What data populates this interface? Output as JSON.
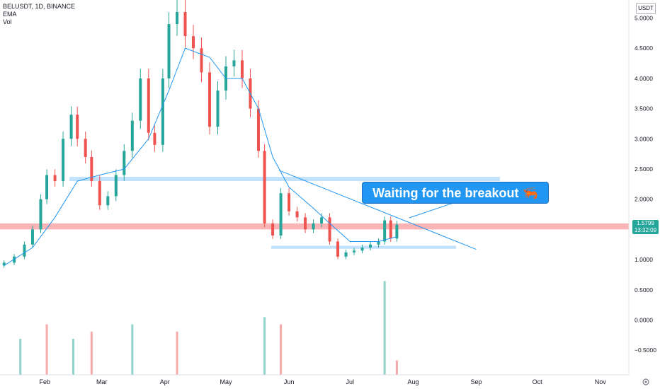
{
  "legend": {
    "symbol": "BELUSDT, 1D, BINANCE",
    "ema": "EMA",
    "vol": "Vol"
  },
  "axis": {
    "unit": "USDT",
    "price_ticks": [
      "5.0000",
      "4.5000",
      "4.0000",
      "3.5000",
      "3.0000",
      "2.5000",
      "2.0000",
      "1.0000",
      "0.5000",
      "0.0000",
      "−0.5000"
    ],
    "month_ticks": [
      "Feb",
      "Mar",
      "Apr",
      "May",
      "Jun",
      "Jul",
      "Aug",
      "Sep",
      "Oct",
      "Nov"
    ]
  },
  "price_tag": {
    "price": "1.5799",
    "countdown": "13:32:09"
  },
  "callout": {
    "text": "Waiting for the breakout 🦐"
  },
  "colors": {
    "up": "#26a69a",
    "down": "#ef5350",
    "ema": "#2196f3",
    "support_zone": "#bbdefb",
    "resistance_zone": "#f8a8a8",
    "callout": "#2196f3"
  },
  "chart_data": {
    "type": "candlestick",
    "timeframe": "1D",
    "ylim": [
      -0.6,
      5.3
    ],
    "x_range": [
      "2021-01-10",
      "2021-11-15"
    ],
    "series": [
      {
        "name": "BELUSDT",
        "kind": "candles",
        "points": [
          {
            "date": "2021-01-12",
            "close": 0.95
          },
          {
            "date": "2021-01-17",
            "close": 1.05
          },
          {
            "date": "2021-01-22",
            "close": 1.25
          },
          {
            "date": "2021-01-26",
            "close": 1.5
          },
          {
            "date": "2021-01-30",
            "close": 2.0
          },
          {
            "date": "2021-02-02",
            "close": 2.4
          },
          {
            "date": "2021-02-06",
            "close": 2.3
          },
          {
            "date": "2021-02-10",
            "close": 3.0
          },
          {
            "date": "2021-02-14",
            "close": 3.4
          },
          {
            "date": "2021-02-17",
            "close": 3.0
          },
          {
            "date": "2021-02-21",
            "close": 2.7
          },
          {
            "date": "2021-02-24",
            "close": 2.3
          },
          {
            "date": "2021-02-28",
            "close": 1.9
          },
          {
            "date": "2021-03-04",
            "close": 2.05
          },
          {
            "date": "2021-03-08",
            "close": 2.4
          },
          {
            "date": "2021-03-12",
            "close": 2.8
          },
          {
            "date": "2021-03-16",
            "close": 3.3
          },
          {
            "date": "2021-03-20",
            "close": 4.0
          },
          {
            "date": "2021-03-24",
            "close": 3.1
          },
          {
            "date": "2021-03-27",
            "close": 2.9
          },
          {
            "date": "2021-03-31",
            "close": 4.0
          },
          {
            "date": "2021-04-03",
            "close": 4.9
          },
          {
            "date": "2021-04-07",
            "close": 5.1
          },
          {
            "date": "2021-04-11",
            "close": 4.7
          },
          {
            "date": "2021-04-15",
            "close": 4.5
          },
          {
            "date": "2021-04-19",
            "close": 4.1
          },
          {
            "date": "2021-04-23",
            "close": 3.2
          },
          {
            "date": "2021-04-27",
            "close": 3.8
          },
          {
            "date": "2021-05-01",
            "close": 4.2
          },
          {
            "date": "2021-05-05",
            "close": 4.3
          },
          {
            "date": "2021-05-09",
            "close": 4.0
          },
          {
            "date": "2021-05-13",
            "close": 3.5
          },
          {
            "date": "2021-05-17",
            "close": 2.8
          },
          {
            "date": "2021-05-20",
            "close": 1.6
          },
          {
            "date": "2021-05-24",
            "close": 1.4
          },
          {
            "date": "2021-05-28",
            "close": 2.1
          },
          {
            "date": "2021-06-01",
            "close": 1.8
          },
          {
            "date": "2021-06-05",
            "close": 1.7
          },
          {
            "date": "2021-06-09",
            "close": 1.5
          },
          {
            "date": "2021-06-13",
            "close": 1.6
          },
          {
            "date": "2021-06-17",
            "close": 1.7
          },
          {
            "date": "2021-06-21",
            "close": 1.3
          },
          {
            "date": "2021-06-25",
            "close": 1.05
          },
          {
            "date": "2021-06-29",
            "close": 1.12
          },
          {
            "date": "2021-07-03",
            "close": 1.15
          },
          {
            "date": "2021-07-07",
            "close": 1.2
          },
          {
            "date": "2021-07-11",
            "close": 1.25
          },
          {
            "date": "2021-07-15",
            "close": 1.3
          },
          {
            "date": "2021-07-18",
            "close": 1.65
          },
          {
            "date": "2021-07-21",
            "close": 1.35
          },
          {
            "date": "2021-07-24",
            "close": 1.58
          }
        ]
      },
      {
        "name": "EMA",
        "kind": "line",
        "points": [
          {
            "date": "2021-01-12",
            "value": 0.9
          },
          {
            "date": "2021-01-26",
            "value": 1.2
          },
          {
            "date": "2021-02-06",
            "value": 1.7
          },
          {
            "date": "2021-02-17",
            "value": 2.3
          },
          {
            "date": "2021-02-28",
            "value": 2.4
          },
          {
            "date": "2021-03-12",
            "value": 2.5
          },
          {
            "date": "2021-03-24",
            "value": 3.0
          },
          {
            "date": "2021-04-03",
            "value": 3.8
          },
          {
            "date": "2021-04-11",
            "value": 4.5
          },
          {
            "date": "2021-04-23",
            "value": 4.35
          },
          {
            "date": "2021-05-01",
            "value": 4.0
          },
          {
            "date": "2021-05-09",
            "value": 4.0
          },
          {
            "date": "2021-05-17",
            "value": 3.5
          },
          {
            "date": "2021-05-24",
            "value": 2.7
          },
          {
            "date": "2021-06-01",
            "value": 2.2
          },
          {
            "date": "2021-06-13",
            "value": 1.85
          },
          {
            "date": "2021-06-21",
            "value": 1.6
          },
          {
            "date": "2021-07-01",
            "value": 1.3
          },
          {
            "date": "2021-07-15",
            "value": 1.3
          },
          {
            "date": "2021-07-24",
            "value": 1.38
          }
        ]
      }
    ],
    "volume": [
      {
        "date": "2021-01-20",
        "value": 0.25
      },
      {
        "date": "2021-02-02",
        "value": 0.35
      },
      {
        "date": "2021-02-15",
        "value": 0.25
      },
      {
        "date": "2021-02-24",
        "value": 0.3
      },
      {
        "date": "2021-03-16",
        "value": 0.35
      },
      {
        "date": "2021-04-07",
        "value": 0.3
      },
      {
        "date": "2021-05-20",
        "value": 0.4
      },
      {
        "date": "2021-05-28",
        "value": 0.35
      },
      {
        "date": "2021-07-18",
        "value": 0.65
      },
      {
        "date": "2021-07-24",
        "value": 0.1
      }
    ],
    "annotations": [
      {
        "type": "zone",
        "label": "resistance",
        "from": 1.5,
        "to": 1.6
      },
      {
        "type": "zone",
        "label": "support",
        "from": 2.3,
        "to": 2.37
      },
      {
        "type": "zone",
        "label": "support",
        "from": 1.18,
        "to": 1.23
      },
      {
        "type": "trendline",
        "from": {
          "date": "2021-05-27",
          "price": 2.48
        },
        "to": {
          "date": "2021-09-01",
          "price": 1.17
        }
      }
    ],
    "grid": false,
    "legend_position": "top-left"
  }
}
